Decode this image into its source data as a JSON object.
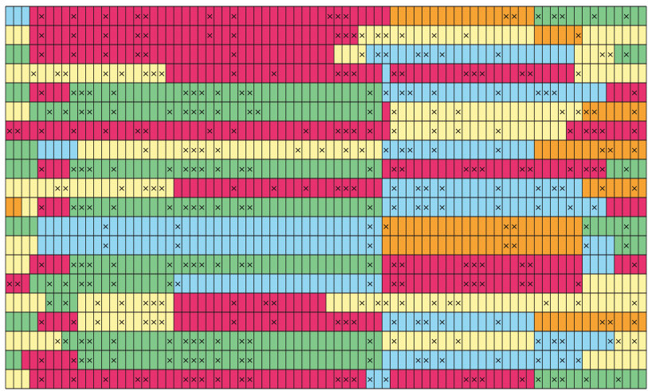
{
  "mark": "×",
  "rows": [
    {
      "segments": [
        [
          "#92d6f2",
          3
        ],
        [
          "#e8326f",
          45
        ],
        [
          "#f7a334",
          18
        ],
        [
          "#80c98b",
          14
        ]
      ],
      "marks": [
        4,
        8,
        12,
        16,
        17,
        25,
        28,
        40,
        41,
        42,
        62,
        63,
        66,
        68,
        69,
        73,
        77
      ]
    },
    {
      "segments": [
        [
          "#fdf4a3",
          3
        ],
        [
          "#e8326f",
          41
        ],
        [
          "#fdf4a3",
          22
        ],
        [
          "#f7a334",
          6
        ],
        [
          "#fdf4a3",
          8
        ]
      ],
      "marks": [
        4,
        8,
        12,
        16,
        17,
        25,
        28,
        41,
        42,
        43,
        44,
        46,
        47,
        49,
        53,
        57,
        71
      ]
    },
    {
      "segments": [
        [
          "#80c98b",
          3
        ],
        [
          "#e8326f",
          38
        ],
        [
          "#fdf4a3",
          4
        ],
        [
          "#92d6f2",
          26
        ],
        [
          "#fdf4a3",
          5
        ],
        [
          "#80c98b",
          4
        ]
      ],
      "marks": [
        4,
        8,
        12,
        16,
        17,
        28,
        44,
        46,
        47,
        51,
        52,
        54,
        61,
        74,
        75,
        77
      ]
    },
    {
      "segments": [
        [
          "#fdf4a3",
          20
        ],
        [
          "#e8326f",
          27
        ],
        [
          "#92d6f2",
          1
        ],
        [
          "#e8326f",
          23
        ],
        [
          "#fdf4a3",
          9
        ]
      ],
      "marks": [
        3,
        6,
        7,
        12,
        14,
        17,
        18,
        19,
        28,
        33,
        41,
        42,
        43,
        48,
        49,
        57,
        58,
        59,
        64,
        65,
        71
      ]
    },
    {
      "segments": [
        [
          "#80c98b",
          3
        ],
        [
          "#e8326f",
          5
        ],
        [
          "#80c98b",
          39
        ],
        [
          "#92d6f2",
          28
        ],
        [
          "#e8326f",
          5
        ]
      ],
      "marks": [
        4,
        8,
        9,
        10,
        13,
        22,
        23,
        24,
        26,
        29,
        30,
        45,
        47,
        49,
        50,
        53,
        61,
        66,
        67,
        68,
        78
      ]
    },
    {
      "segments": [
        [
          "#fdf4a3",
          3
        ],
        [
          "#80c98b",
          44
        ],
        [
          "#e8326f",
          1
        ],
        [
          "#fdf4a3",
          24
        ],
        [
          "#f7a334",
          8
        ]
      ],
      "marks": [
        5,
        7,
        9,
        10,
        13,
        20,
        22,
        23,
        24,
        26,
        30,
        31,
        45,
        48,
        53,
        56,
        69,
        71,
        72,
        73,
        78
      ]
    },
    {
      "segments": [
        [
          "#e8326f",
          48
        ],
        [
          "#fdf4a3",
          22
        ],
        [
          "#e8326f",
          10
        ]
      ],
      "marks": [
        0,
        1,
        4,
        8,
        12,
        16,
        17,
        25,
        28,
        37,
        41,
        42,
        43,
        45,
        48,
        53,
        56,
        61,
        70,
        72,
        73,
        74,
        78
      ]
    },
    {
      "segments": [
        [
          "#80c98b",
          4
        ],
        [
          "#92d6f2",
          5
        ],
        [
          "#fdf4a3",
          38
        ],
        [
          "#92d6f2",
          19
        ],
        [
          "#f7a334",
          14
        ]
      ],
      "marks": [
        17,
        22,
        23,
        24,
        26,
        36,
        39,
        42,
        44,
        47,
        49,
        50,
        53,
        61,
        74,
        75,
        78
      ]
    },
    {
      "segments": [
        [
          "#80c98b",
          4
        ],
        [
          "#e8326f",
          4
        ],
        [
          "#80c98b",
          39
        ],
        [
          "#e8326f",
          28
        ],
        [
          "#80c98b",
          5
        ]
      ],
      "marks": [
        4,
        8,
        9,
        10,
        13,
        20,
        22,
        23,
        24,
        26,
        29,
        30,
        45,
        48,
        49,
        57,
        58,
        59,
        64,
        65,
        70,
        72,
        73,
        74,
        77
      ]
    },
    {
      "segments": [
        [
          "#fdf4a3",
          21
        ],
        [
          "#e8326f",
          26
        ],
        [
          "#92d6f2",
          25
        ],
        [
          "#f7a334",
          8
        ]
      ],
      "marks": [
        6,
        7,
        14,
        17,
        18,
        19,
        28,
        33,
        37,
        41,
        42,
        43,
        48,
        51,
        52,
        54,
        61,
        66,
        68,
        69,
        74,
        78
      ]
    },
    {
      "segments": [
        [
          "#f7a334",
          2
        ],
        [
          "#fdf4a3",
          2
        ],
        [
          "#e8326f",
          4
        ],
        [
          "#80c98b",
          39
        ],
        [
          "#92d6f2",
          28
        ],
        [
          "#e8326f",
          5
        ]
      ],
      "marks": [
        4,
        8,
        9,
        10,
        13,
        20,
        22,
        23,
        24,
        26,
        29,
        30,
        45,
        48,
        51,
        52,
        54,
        61,
        66,
        70,
        73
      ]
    },
    {
      "segments": [
        [
          "#80c98b",
          4
        ],
        [
          "#92d6f2",
          43
        ],
        [
          "#f7a334",
          25
        ],
        [
          "#80c98b",
          8
        ]
      ],
      "marks": [
        12,
        21,
        45,
        47,
        62,
        63,
        72,
        77
      ]
    },
    {
      "segments": [
        [
          "#fdf4a3",
          4
        ],
        [
          "#92d6f2",
          43
        ],
        [
          "#f7a334",
          25
        ],
        [
          "#92d6f2",
          4
        ],
        [
          "#80c98b",
          4
        ]
      ],
      "marks": [
        12,
        21,
        45,
        62,
        63,
        72,
        77
      ]
    },
    {
      "segments": [
        [
          "#fdf4a3",
          3
        ],
        [
          "#e8326f",
          5
        ],
        [
          "#80c98b",
          39
        ],
        [
          "#e8326f",
          25
        ],
        [
          "#92d6f2",
          4
        ],
        [
          "#e8326f",
          4
        ]
      ],
      "marks": [
        4,
        8,
        9,
        10,
        13,
        20,
        22,
        23,
        24,
        26,
        29,
        30,
        45,
        48,
        49,
        57,
        58,
        59,
        64,
        65,
        78
      ]
    },
    {
      "segments": [
        [
          "#e8326f",
          3
        ],
        [
          "#80c98b",
          18
        ],
        [
          "#92d6f2",
          26
        ],
        [
          "#e8326f",
          25
        ],
        [
          "#fdf4a3",
          8
        ]
      ],
      "marks": [
        0,
        1,
        5,
        7,
        9,
        10,
        13,
        20,
        21,
        45,
        48,
        49,
        57,
        58,
        59,
        64,
        65,
        71
      ]
    },
    {
      "segments": [
        [
          "#fdf4a3",
          5
        ],
        [
          "#80c98b",
          4
        ],
        [
          "#fdf4a3",
          12
        ],
        [
          "#e8326f",
          19
        ],
        [
          "#fdf4a3",
          40
        ]
      ],
      "marks": [
        5,
        7,
        11,
        14,
        17,
        18,
        19,
        28,
        32,
        33,
        44,
        46,
        47,
        49,
        53,
        55,
        56,
        67,
        71,
        78
      ]
    },
    {
      "segments": [
        [
          "#80c98b",
          4
        ],
        [
          "#e8326f",
          5
        ],
        [
          "#fdf4a3",
          12
        ],
        [
          "#e8326f",
          26
        ],
        [
          "#92d6f2",
          19
        ],
        [
          "#f7a334",
          14
        ]
      ],
      "marks": [
        4,
        8,
        11,
        14,
        17,
        18,
        19,
        28,
        33,
        41,
        42,
        43,
        48,
        51,
        52,
        54,
        61,
        74,
        75,
        78
      ]
    },
    {
      "segments": [
        [
          "#fdf4a3",
          7
        ],
        [
          "#80c98b",
          40
        ],
        [
          "#fdf4a3",
          19
        ],
        [
          "#92d6f2",
          10
        ],
        [
          "#fdf4a3",
          4
        ]
      ],
      "marks": [
        6,
        7,
        9,
        10,
        13,
        20,
        22,
        23,
        24,
        26,
        29,
        30,
        45,
        48,
        53,
        56,
        66,
        68,
        69,
        75,
        76,
        78
      ]
    },
    {
      "segments": [
        [
          "#80c98b",
          2
        ],
        [
          "#e8326f",
          7
        ],
        [
          "#80c98b",
          38
        ],
        [
          "#92d6f2",
          25
        ],
        [
          "#fdf4a3",
          8
        ]
      ],
      "marks": [
        4,
        8,
        9,
        10,
        13,
        20,
        22,
        23,
        24,
        26,
        29,
        30,
        45,
        51,
        52,
        54,
        61,
        66,
        69,
        71
      ]
    },
    {
      "segments": [
        [
          "#fdf4a3",
          3
        ],
        [
          "#e8326f",
          42
        ],
        [
          "#92d6f2",
          3
        ],
        [
          "#e8326f",
          18
        ],
        [
          "#80c98b",
          14
        ]
      ],
      "marks": [
        4,
        8,
        12,
        16,
        17,
        22,
        23,
        24,
        26,
        29,
        30,
        41,
        42,
        43,
        45,
        47,
        57,
        58,
        59,
        64,
        66,
        68,
        69,
        72,
        76
      ]
    }
  ]
}
